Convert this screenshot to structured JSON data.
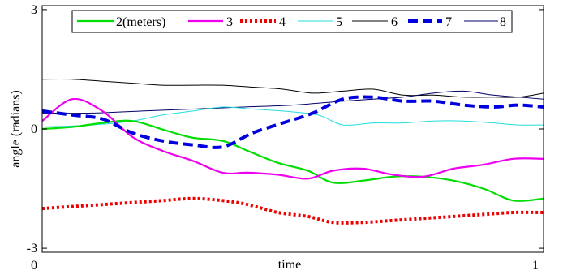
{
  "chart_data": {
    "type": "line",
    "title": "",
    "xlabel": "time",
    "ylabel": "angle (radians)",
    "xlim": [
      0,
      1
    ],
    "ylim": [
      -3.1,
      3.1
    ],
    "x_ticks": [
      {
        "value": 0,
        "label": "0"
      },
      {
        "value": 1,
        "label": "1"
      }
    ],
    "y_ticks": [
      {
        "value": 3,
        "label": "3"
      },
      {
        "value": 0,
        "label": "0"
      },
      {
        "value": -3,
        "label": "-3"
      }
    ],
    "grid": false,
    "legend_position": "top",
    "series": [
      {
        "name": "2(meters)",
        "color": "#00dd00",
        "dash": "solid",
        "width": "medium",
        "x": [
          0,
          0.06,
          0.12,
          0.18,
          0.25,
          0.3,
          0.36,
          0.41,
          0.47,
          0.53,
          0.58,
          0.64,
          0.7,
          0.76,
          0.82,
          0.88,
          0.94,
          1
        ],
        "y": [
          0,
          0.05,
          0.15,
          0.2,
          -0.05,
          -0.22,
          -0.3,
          -0.55,
          -0.85,
          -1.05,
          -1.35,
          -1.3,
          -1.2,
          -1.2,
          -1.3,
          -1.5,
          -1.8,
          -1.75
        ]
      },
      {
        "name": "3",
        "color": "#ee00ee",
        "dash": "solid",
        "width": "medium",
        "x": [
          0,
          0.06,
          0.12,
          0.18,
          0.24,
          0.3,
          0.36,
          0.41,
          0.47,
          0.53,
          0.58,
          0.64,
          0.7,
          0.76,
          0.82,
          0.88,
          0.94,
          1
        ],
        "y": [
          0.2,
          0.75,
          0.45,
          -0.2,
          -0.55,
          -0.8,
          -1.1,
          -1.1,
          -1.15,
          -1.25,
          -1.05,
          -1.0,
          -1.15,
          -1.2,
          -1.0,
          -0.9,
          -0.75,
          -0.75
        ]
      },
      {
        "name": "4",
        "color": "#ee0000",
        "dash": "dotted",
        "width": "thick",
        "x": [
          0,
          0.06,
          0.12,
          0.18,
          0.24,
          0.3,
          0.36,
          0.41,
          0.47,
          0.53,
          0.58,
          0.64,
          0.7,
          0.76,
          0.82,
          0.88,
          0.94,
          1
        ],
        "y": [
          -2,
          -1.95,
          -1.9,
          -1.85,
          -1.8,
          -1.75,
          -1.8,
          -1.9,
          -2.1,
          -2.2,
          -2.35,
          -2.35,
          -2.3,
          -2.25,
          -2.2,
          -2.15,
          -2.1,
          -2.1
        ]
      },
      {
        "name": "5",
        "color": "#22dddd",
        "dash": "solid",
        "width": "thin",
        "x": [
          0,
          0.1,
          0.18,
          0.24,
          0.3,
          0.36,
          0.42,
          0.48,
          0.55,
          0.6,
          0.66,
          0.72,
          0.78,
          0.84,
          0.9,
          0.95,
          1
        ],
        "y": [
          0.05,
          0.1,
          0.2,
          0.35,
          0.45,
          0.55,
          0.5,
          0.45,
          0.35,
          0.1,
          0.15,
          0.15,
          0.2,
          0.2,
          0.15,
          0.1,
          0.1
        ]
      },
      {
        "name": "6",
        "color": "#000000",
        "dash": "solid",
        "width": "thin",
        "x": [
          0,
          0.06,
          0.12,
          0.18,
          0.24,
          0.3,
          0.36,
          0.42,
          0.48,
          0.54,
          0.6,
          0.66,
          0.72,
          0.78,
          0.84,
          0.9,
          0.95,
          1
        ],
        "y": [
          1.25,
          1.25,
          1.2,
          1.15,
          1.1,
          1.1,
          1.1,
          1.05,
          1.0,
          0.9,
          0.95,
          1.0,
          0.85,
          0.85,
          0.8,
          0.8,
          0.8,
          0.9
        ]
      },
      {
        "name": "7",
        "color": "#0000dd",
        "dash": "dashed",
        "width": "thick",
        "x": [
          0,
          0.06,
          0.12,
          0.18,
          0.24,
          0.3,
          0.36,
          0.42,
          0.48,
          0.54,
          0.6,
          0.66,
          0.72,
          0.78,
          0.84,
          0.9,
          0.95,
          1
        ],
        "y": [
          0.45,
          0.35,
          0.25,
          -0.1,
          -0.3,
          -0.4,
          -0.45,
          -0.1,
          0.15,
          0.4,
          0.75,
          0.8,
          0.7,
          0.7,
          0.6,
          0.55,
          0.6,
          0.55
        ]
      },
      {
        "name": "8",
        "color": "#000066",
        "dash": "solid",
        "width": "thin",
        "x": [
          0,
          0.1,
          0.2,
          0.3,
          0.4,
          0.5,
          0.6,
          0.66,
          0.72,
          0.78,
          0.84,
          0.9,
          0.95,
          1
        ],
        "y": [
          0.4,
          0.4,
          0.45,
          0.5,
          0.55,
          0.6,
          0.7,
          0.75,
          0.8,
          0.9,
          0.95,
          0.85,
          0.8,
          0.75
        ]
      }
    ]
  }
}
